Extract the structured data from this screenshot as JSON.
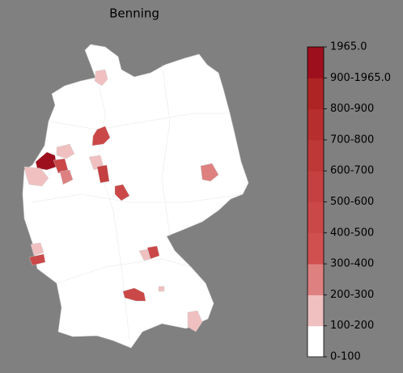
{
  "title": "Benning",
  "legend": {
    "labels": [
      "0-100",
      "100-200",
      "200-300",
      "300-400",
      "400-500",
      "500-600",
      "600-700",
      "700-800",
      "800-900",
      "900-1965.0",
      "1965.0"
    ],
    "colors": [
      "#ffffff",
      "#f0c0c0",
      "#de8080",
      "#d05050",
      "#cb4848",
      "#c54040",
      "#be3838",
      "#b72e2e",
      "#ae2424",
      "#9e0f1e"
    ]
  }
}
